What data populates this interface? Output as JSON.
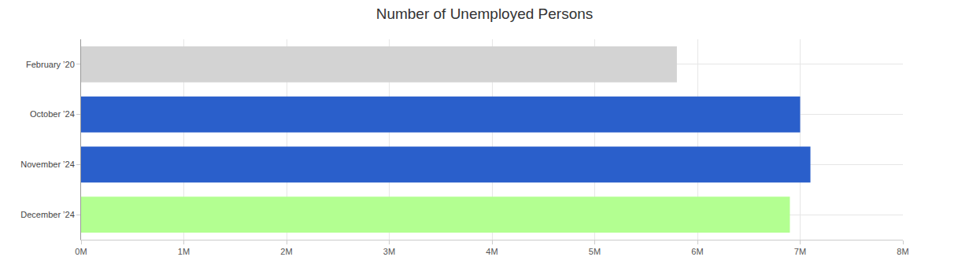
{
  "chart_data": {
    "type": "bar",
    "title": "Number of Unemployed Persons",
    "orientation": "horizontal",
    "categories": [
      "February ’20",
      "October ’24",
      "November ’24",
      "December ’24"
    ],
    "values": [
      5800000,
      7000000,
      7100000,
      6900000
    ],
    "colors": [
      "#d3d3d3",
      "#2a5fcb",
      "#2a5fcb",
      "#b3ff91"
    ],
    "xlim": [
      0,
      8000000
    ],
    "xticks": [
      {
        "value": 0,
        "label": "0M"
      },
      {
        "value": 1000000,
        "label": "1M"
      },
      {
        "value": 2000000,
        "label": "2M"
      },
      {
        "value": 3000000,
        "label": "3M"
      },
      {
        "value": 4000000,
        "label": "4M"
      },
      {
        "value": 5000000,
        "label": "5M"
      },
      {
        "value": 6000000,
        "label": "6M"
      },
      {
        "value": 7000000,
        "label": "7M"
      },
      {
        "value": 8000000,
        "label": "8M"
      }
    ],
    "grid": true
  }
}
